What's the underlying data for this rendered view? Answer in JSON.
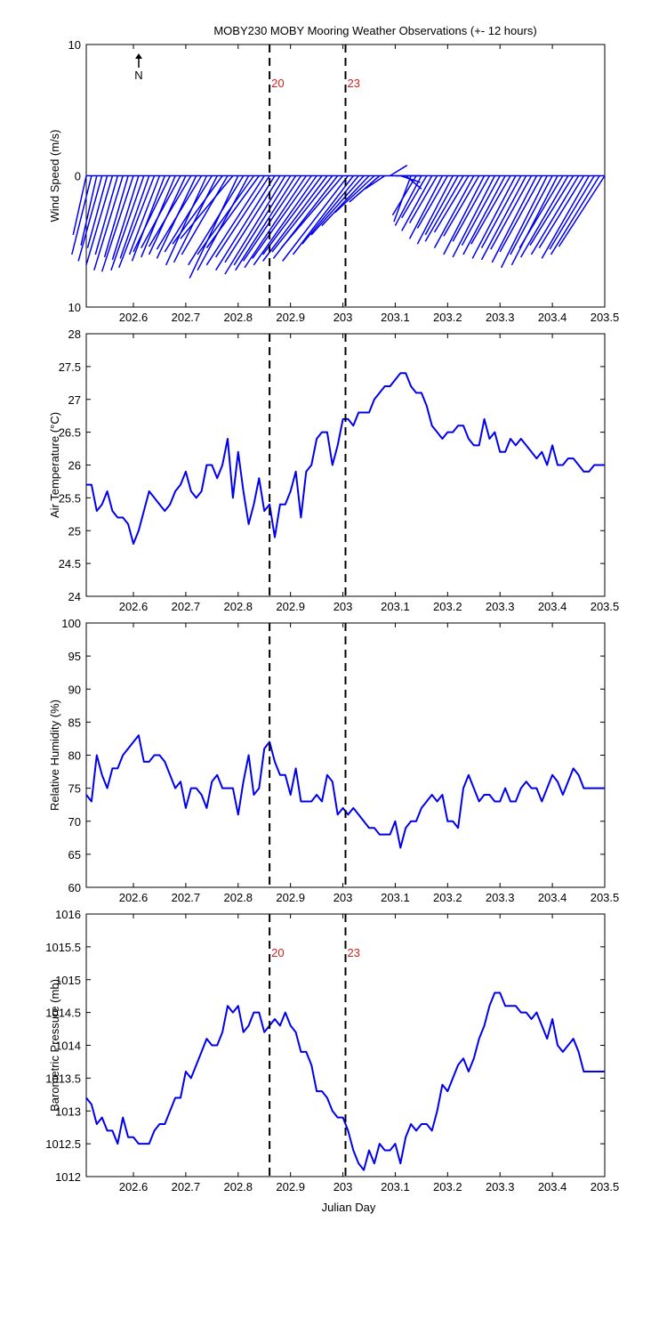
{
  "figure_title": "MOBY230 MOBY Mooring Weather Observations (+- 12 hours)",
  "north_label": "N",
  "shared_xlabel": "Julian Day",
  "colors": {
    "series": "#0000ee",
    "event_line": "#000000",
    "event_label": "#cc2222"
  },
  "chart_data": [
    {
      "type": "line",
      "subtype": "wind-stick",
      "ylabel": "Wind Speed (m/s)",
      "xlim": [
        202.51,
        203.5
      ],
      "ylim": [
        -10,
        10
      ],
      "ytick_labels": [
        "10",
        "0",
        "10"
      ],
      "xticks": [
        202.6,
        202.7,
        202.8,
        202.9,
        203,
        203.1,
        203.2,
        203.3,
        203.4,
        203.5
      ],
      "xtick_labels": [
        "202.6",
        "202.7",
        "202.8",
        "202.9",
        "203",
        "203.1",
        "203.2",
        "203.3",
        "203.4",
        "203.5"
      ],
      "events": [
        {
          "x": 202.86,
          "label": "20"
        },
        {
          "x": 203.005,
          "label": "23"
        }
      ],
      "x": [
        202.51,
        202.52,
        202.53,
        202.54,
        202.55,
        202.56,
        202.57,
        202.58,
        202.59,
        202.6,
        202.61,
        202.62,
        202.63,
        202.64,
        202.65,
        202.66,
        202.67,
        202.68,
        202.69,
        202.7,
        202.71,
        202.72,
        202.73,
        202.74,
        202.75,
        202.76,
        202.77,
        202.78,
        202.79,
        202.8,
        202.81,
        202.82,
        202.83,
        202.84,
        202.85,
        202.86,
        202.87,
        202.88,
        202.89,
        202.9,
        202.91,
        202.92,
        202.93,
        202.94,
        202.95,
        202.96,
        202.97,
        202.98,
        202.99,
        203.0,
        203.01,
        203.02,
        203.03,
        203.04,
        203.05,
        203.06,
        203.07,
        203.08,
        203.09,
        203.1,
        203.11,
        203.12,
        203.13,
        203.14,
        203.15,
        203.16,
        203.17,
        203.18,
        203.19,
        203.2,
        203.21,
        203.22,
        203.23,
        203.24,
        203.25,
        203.26,
        203.27,
        203.28,
        203.29,
        203.3,
        203.31,
        203.32,
        203.33,
        203.34,
        203.35,
        203.36,
        203.37,
        203.38,
        203.39,
        203.4,
        203.41,
        203.42,
        203.43,
        203.44,
        203.45,
        203.46,
        203.47,
        203.48,
        203.49,
        203.5
      ],
      "u": [
        -1.0,
        -1.5,
        -1.2,
        -1.8,
        -1.5,
        -2.0,
        -1.7,
        -2.2,
        -1.8,
        -2.4,
        -2.0,
        -2.5,
        -2.2,
        -2.7,
        -2.3,
        -2.5,
        -2.8,
        -2.6,
        -3.0,
        -2.8,
        -3.2,
        -3.0,
        -3.4,
        -3.1,
        -3.6,
        -3.3,
        -3.8,
        -3.5,
        -4.0,
        -3.7,
        -4.2,
        -3.9,
        -4.3,
        -4.0,
        -4.4,
        -4.1,
        -4.5,
        -4.2,
        -4.6,
        -4.3,
        -4.6,
        -4.4,
        -4.7,
        -4.5,
        -4.8,
        -4.5,
        -4.9,
        -4.6,
        -4.9,
        -4.7,
        -5.0,
        -4.6,
        -4.3,
        -4.0,
        -3.6,
        -3.0,
        -2.3,
        -1.5,
        1.3,
        2.0,
        1.5,
        1.2,
        -1.3,
        -1.8,
        -2.0,
        -1.9,
        -2.3,
        -2.1,
        -2.5,
        -2.3,
        -2.7,
        -2.5,
        -2.9,
        -2.6,
        -3.0,
        -2.7,
        -3.1,
        -2.8,
        -3.2,
        -2.9,
        -3.2,
        -3.0,
        -3.3,
        -3.0,
        -3.4,
        -3.1,
        -3.4,
        -3.2,
        -3.5,
        -3.2,
        -3.5,
        -3.3,
        -3.6,
        -3.3,
        -3.6,
        -3.4,
        -3.6,
        -3.4,
        -3.7,
        -3.5
      ],
      "v": [
        -4.5,
        -6.0,
        -5.3,
        -6.5,
        -5.5,
        -6.8,
        -6.0,
        -7.2,
        -6.2,
        -7.3,
        -6.4,
        -7.2,
        -6.3,
        -7.0,
        -6.0,
        -6.5,
        -5.8,
        -6.2,
        -5.5,
        -6.0,
        -5.4,
        -6.3,
        -5.6,
        -6.8,
        -5.8,
        -6.6,
        -5.2,
        -6.0,
        -4.8,
        -7.8,
        -6.8,
        -7.2,
        -6.0,
        -5.5,
        -6.8,
        -6.2,
        -7.2,
        -6.6,
        -7.5,
        -6.8,
        -7.2,
        -6.5,
        -7.0,
        -6.3,
        -6.8,
        -6.0,
        -6.5,
        -5.8,
        -6.3,
        -5.5,
        -6.5,
        -6.0,
        -5.2,
        -4.5,
        -3.8,
        -2.8,
        -2.0,
        -1.0,
        0.8,
        0.0,
        -0.5,
        -1.0,
        -3.5,
        -3.0,
        -3.8,
        -3.2,
        -4.2,
        -3.6,
        -4.8,
        -4.0,
        -5.2,
        -4.5,
        -5.0,
        -4.3,
        -5.5,
        -4.6,
        -6.0,
        -5.0,
        -6.2,
        -5.3,
        -6.0,
        -5.2,
        -6.3,
        -5.5,
        -6.4,
        -5.6,
        -6.6,
        -5.8,
        -7.0,
        -6.0,
        -6.8,
        -5.5,
        -6.2,
        -5.3,
        -6.0,
        -5.5,
        -6.3,
        -5.6,
        -6.0,
        -5.4
      ]
    },
    {
      "type": "line",
      "ylabel": "Air Temperature (°C)",
      "xlim": [
        202.51,
        203.5
      ],
      "ylim": [
        24,
        28
      ],
      "yticks": [
        24,
        24.5,
        25,
        25.5,
        26,
        26.5,
        27,
        27.5,
        28
      ],
      "ytick_labels": [
        "24",
        "24.5",
        "25",
        "25.5",
        "26",
        "26.5",
        "27",
        "27.5",
        "28"
      ],
      "xticks": [
        202.6,
        202.7,
        202.8,
        202.9,
        203,
        203.1,
        203.2,
        203.3,
        203.4,
        203.5
      ],
      "xtick_labels": [
        "202.6",
        "202.7",
        "202.8",
        "202.9",
        "203",
        "203.1",
        "203.2",
        "203.3",
        "203.4",
        "203.5"
      ],
      "events": [
        {
          "x": 202.86
        },
        {
          "x": 203.005
        }
      ],
      "x": [
        202.51,
        202.52,
        202.53,
        202.54,
        202.55,
        202.56,
        202.57,
        202.58,
        202.59,
        202.6,
        202.61,
        202.62,
        202.63,
        202.64,
        202.65,
        202.66,
        202.67,
        202.68,
        202.69,
        202.7,
        202.71,
        202.72,
        202.73,
        202.74,
        202.75,
        202.76,
        202.77,
        202.78,
        202.79,
        202.8,
        202.81,
        202.82,
        202.83,
        202.84,
        202.85,
        202.86,
        202.87,
        202.88,
        202.89,
        202.9,
        202.91,
        202.92,
        202.93,
        202.94,
        202.95,
        202.96,
        202.97,
        202.98,
        202.99,
        203.0,
        203.01,
        203.02,
        203.03,
        203.04,
        203.05,
        203.06,
        203.07,
        203.08,
        203.09,
        203.1,
        203.11,
        203.12,
        203.13,
        203.14,
        203.15,
        203.16,
        203.17,
        203.18,
        203.19,
        203.2,
        203.21,
        203.22,
        203.23,
        203.24,
        203.25,
        203.26,
        203.27,
        203.28,
        203.29,
        203.3,
        203.31,
        203.32,
        203.33,
        203.34,
        203.35,
        203.36,
        203.37,
        203.38,
        203.39,
        203.4,
        203.41,
        203.42,
        203.43,
        203.44,
        203.45,
        203.46,
        203.47,
        203.48,
        203.49,
        203.5
      ],
      "y": [
        25.7,
        25.7,
        25.3,
        25.4,
        25.6,
        25.3,
        25.2,
        25.2,
        25.1,
        24.8,
        25.0,
        25.3,
        25.6,
        25.5,
        25.4,
        25.3,
        25.4,
        25.6,
        25.7,
        25.9,
        25.6,
        25.5,
        25.6,
        26.0,
        26.0,
        25.8,
        26.0,
        26.4,
        25.5,
        26.2,
        25.6,
        25.1,
        25.4,
        25.8,
        25.3,
        25.4,
        24.9,
        25.4,
        25.4,
        25.6,
        25.9,
        25.2,
        25.9,
        26.0,
        26.4,
        26.5,
        26.5,
        26.0,
        26.3,
        26.7,
        26.7,
        26.6,
        26.8,
        26.8,
        26.8,
        27.0,
        27.1,
        27.2,
        27.2,
        27.3,
        27.4,
        27.4,
        27.2,
        27.1,
        27.1,
        26.9,
        26.6,
        26.5,
        26.4,
        26.5,
        26.5,
        26.6,
        26.6,
        26.4,
        26.3,
        26.3,
        26.7,
        26.4,
        26.5,
        26.2,
        26.2,
        26.4,
        26.3,
        26.4,
        26.3,
        26.2,
        26.1,
        26.2,
        26.0,
        26.3,
        26.0,
        26.0,
        26.1,
        26.1,
        26.0,
        25.9,
        25.9,
        26.0,
        26.0,
        26.0
      ]
    },
    {
      "type": "line",
      "ylabel": "Relative Humidity (%)",
      "xlim": [
        202.51,
        203.5
      ],
      "ylim": [
        60,
        100
      ],
      "yticks": [
        60,
        65,
        70,
        75,
        80,
        85,
        90,
        95,
        100
      ],
      "ytick_labels": [
        "60",
        "65",
        "70",
        "75",
        "80",
        "85",
        "90",
        "95",
        "100"
      ],
      "xticks": [
        202.6,
        202.7,
        202.8,
        202.9,
        203,
        203.1,
        203.2,
        203.3,
        203.4,
        203.5
      ],
      "xtick_labels": [
        "202.6",
        "202.7",
        "202.8",
        "202.9",
        "203",
        "203.1",
        "203.2",
        "203.3",
        "203.4",
        "203.5"
      ],
      "events": [
        {
          "x": 202.86
        },
        {
          "x": 203.005
        }
      ],
      "x": [
        202.51,
        202.52,
        202.53,
        202.54,
        202.55,
        202.56,
        202.57,
        202.58,
        202.59,
        202.6,
        202.61,
        202.62,
        202.63,
        202.64,
        202.65,
        202.66,
        202.67,
        202.68,
        202.69,
        202.7,
        202.71,
        202.72,
        202.73,
        202.74,
        202.75,
        202.76,
        202.77,
        202.78,
        202.79,
        202.8,
        202.81,
        202.82,
        202.83,
        202.84,
        202.85,
        202.86,
        202.87,
        202.88,
        202.89,
        202.9,
        202.91,
        202.92,
        202.93,
        202.94,
        202.95,
        202.96,
        202.97,
        202.98,
        202.99,
        203.0,
        203.01,
        203.02,
        203.03,
        203.04,
        203.05,
        203.06,
        203.07,
        203.08,
        203.09,
        203.1,
        203.11,
        203.12,
        203.13,
        203.14,
        203.15,
        203.16,
        203.17,
        203.18,
        203.19,
        203.2,
        203.21,
        203.22,
        203.23,
        203.24,
        203.25,
        203.26,
        203.27,
        203.28,
        203.29,
        203.3,
        203.31,
        203.32,
        203.33,
        203.34,
        203.35,
        203.36,
        203.37,
        203.38,
        203.39,
        203.4,
        203.41,
        203.42,
        203.43,
        203.44,
        203.45,
        203.46,
        203.47,
        203.48,
        203.49,
        203.5
      ],
      "y": [
        74,
        73,
        80,
        77,
        75,
        78,
        78,
        80,
        81,
        82,
        83,
        79,
        79,
        80,
        80,
        79,
        77,
        75,
        76,
        72,
        75,
        75,
        74,
        72,
        76,
        77,
        75,
        75,
        75,
        71,
        76,
        80,
        74,
        75,
        81,
        82,
        79,
        77,
        77,
        74,
        78,
        73,
        73,
        73,
        74,
        73,
        77,
        76,
        71,
        72,
        71,
        72,
        71,
        70,
        69,
        69,
        68,
        68,
        68,
        70,
        66,
        69,
        70,
        70,
        72,
        73,
        74,
        73,
        74,
        70,
        70,
        69,
        75,
        77,
        75,
        73,
        74,
        74,
        73,
        73,
        75,
        73,
        73,
        75,
        76,
        75,
        75,
        73,
        75,
        77,
        76,
        74,
        76,
        78,
        77,
        75,
        75,
        75,
        75,
        75
      ]
    },
    {
      "type": "line",
      "ylabel": "Barometric Pressure (mb)",
      "xlabel": "Julian Day",
      "xlim": [
        202.51,
        203.5
      ],
      "ylim": [
        1012,
        1016
      ],
      "yticks": [
        1012,
        1012.5,
        1013,
        1013.5,
        1014,
        1014.5,
        1015,
        1015.5,
        1016
      ],
      "ytick_labels": [
        "1012",
        "1012.5",
        "1013",
        "1013.5",
        "1014",
        "1014.5",
        "1015",
        "1015.5",
        "1016"
      ],
      "xticks": [
        202.6,
        202.7,
        202.8,
        202.9,
        203,
        203.1,
        203.2,
        203.3,
        203.4,
        203.5
      ],
      "xtick_labels": [
        "202.6",
        "202.7",
        "202.8",
        "202.9",
        "203",
        "203.1",
        "203.2",
        "203.3",
        "203.4",
        "203.5"
      ],
      "events": [
        {
          "x": 202.86,
          "label": "20"
        },
        {
          "x": 203.005,
          "label": "23"
        }
      ],
      "x": [
        202.51,
        202.52,
        202.53,
        202.54,
        202.55,
        202.56,
        202.57,
        202.58,
        202.59,
        202.6,
        202.61,
        202.62,
        202.63,
        202.64,
        202.65,
        202.66,
        202.67,
        202.68,
        202.69,
        202.7,
        202.71,
        202.72,
        202.73,
        202.74,
        202.75,
        202.76,
        202.77,
        202.78,
        202.79,
        202.8,
        202.81,
        202.82,
        202.83,
        202.84,
        202.85,
        202.86,
        202.87,
        202.88,
        202.89,
        202.9,
        202.91,
        202.92,
        202.93,
        202.94,
        202.95,
        202.96,
        202.97,
        202.98,
        202.99,
        203.0,
        203.01,
        203.02,
        203.03,
        203.04,
        203.05,
        203.06,
        203.07,
        203.08,
        203.09,
        203.1,
        203.11,
        203.12,
        203.13,
        203.14,
        203.15,
        203.16,
        203.17,
        203.18,
        203.19,
        203.2,
        203.21,
        203.22,
        203.23,
        203.24,
        203.25,
        203.26,
        203.27,
        203.28,
        203.29,
        203.3,
        203.31,
        203.32,
        203.33,
        203.34,
        203.35,
        203.36,
        203.37,
        203.38,
        203.39,
        203.4,
        203.41,
        203.42,
        203.43,
        203.44,
        203.45,
        203.46,
        203.47,
        203.48,
        203.49,
        203.5
      ],
      "y": [
        1013.2,
        1013.1,
        1012.8,
        1012.9,
        1012.7,
        1012.7,
        1012.5,
        1012.9,
        1012.6,
        1012.6,
        1012.5,
        1012.5,
        1012.5,
        1012.7,
        1012.8,
        1012.8,
        1013.0,
        1013.2,
        1013.2,
        1013.6,
        1013.5,
        1013.7,
        1013.9,
        1014.1,
        1014.0,
        1014.0,
        1014.2,
        1014.6,
        1014.5,
        1014.6,
        1014.2,
        1014.3,
        1014.5,
        1014.5,
        1014.2,
        1014.3,
        1014.4,
        1014.3,
        1014.5,
        1014.3,
        1014.2,
        1013.9,
        1013.9,
        1013.7,
        1013.3,
        1013.3,
        1013.2,
        1013.0,
        1012.9,
        1012.9,
        1012.7,
        1012.4,
        1012.2,
        1012.1,
        1012.4,
        1012.2,
        1012.5,
        1012.4,
        1012.4,
        1012.5,
        1012.2,
        1012.6,
        1012.8,
        1012.7,
        1012.8,
        1012.8,
        1012.7,
        1013.0,
        1013.4,
        1013.3,
        1013.5,
        1013.7,
        1013.8,
        1013.6,
        1013.8,
        1014.1,
        1014.3,
        1014.6,
        1014.8,
        1014.8,
        1014.6,
        1014.6,
        1014.6,
        1014.5,
        1014.5,
        1014.4,
        1014.5,
        1014.3,
        1014.1,
        1014.4,
        1014.0,
        1013.9,
        1014.0,
        1014.1,
        1013.9,
        1013.6,
        1013.6,
        1013.6,
        1013.6,
        1013.6
      ]
    }
  ]
}
